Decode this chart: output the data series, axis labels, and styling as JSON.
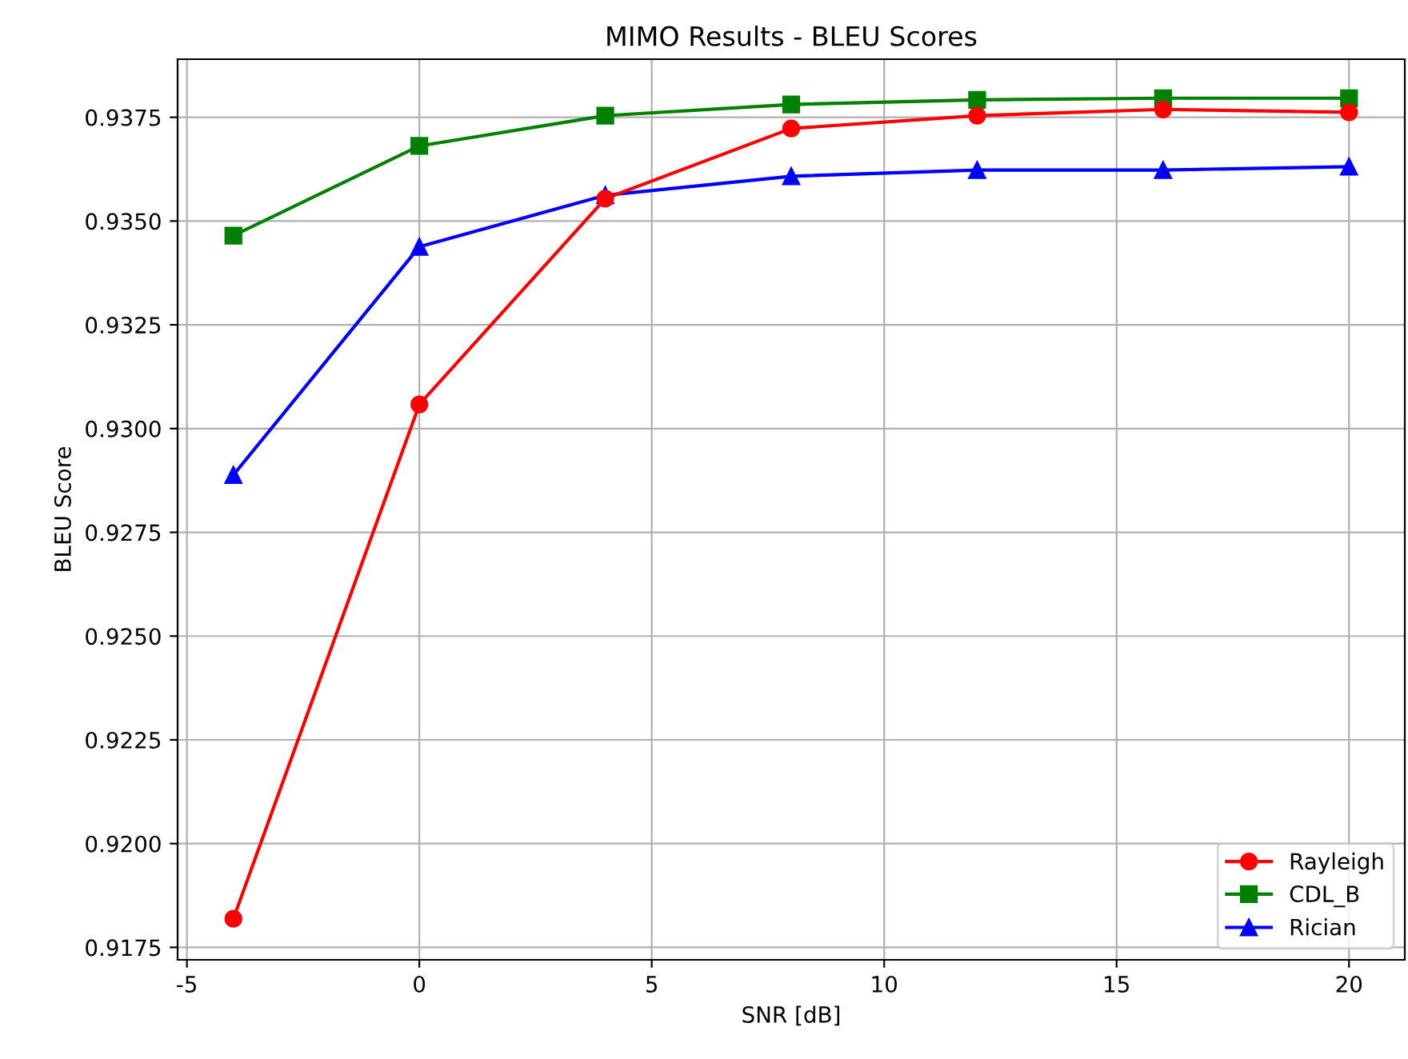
{
  "chart_data": {
    "type": "line",
    "title": "MIMO Results - BLEU Scores",
    "xlabel": "SNR [dB]",
    "ylabel": "BLEU Score",
    "x": [
      -4,
      0,
      4,
      8,
      12,
      16,
      20
    ],
    "series": [
      {
        "name": "Rayleigh",
        "color": "#ff0000",
        "marker": "circle",
        "values": [
          0.91819,
          0.93058,
          0.93554,
          0.93723,
          0.93754,
          0.93769,
          0.93762
        ]
      },
      {
        "name": "CDL_B",
        "color": "#008000",
        "marker": "square",
        "values": [
          0.93465,
          0.93681,
          0.93754,
          0.93781,
          0.93792,
          0.93796,
          0.93796
        ]
      },
      {
        "name": "Rician",
        "color": "#0000ff",
        "marker": "triangle",
        "values": [
          0.92888,
          0.93438,
          0.93562,
          0.93608,
          0.93623,
          0.93623,
          0.93631
        ]
      }
    ],
    "xlim": [
      -5.2,
      21.2
    ],
    "xticks": [
      -5,
      0,
      5,
      10,
      15,
      20
    ],
    "ylim": [
      0.9172,
      0.9389
    ],
    "yticks": [
      {
        "value": 0.9175,
        "label": "0.9175"
      },
      {
        "value": 0.92,
        "label": "0.9200"
      },
      {
        "value": 0.9225,
        "label": "0.9225"
      },
      {
        "value": 0.925,
        "label": "0.9250"
      },
      {
        "value": 0.9275,
        "label": "0.9275"
      },
      {
        "value": 0.93,
        "label": "0.9300"
      },
      {
        "value": 0.9325,
        "label": "0.9325"
      },
      {
        "value": 0.935,
        "label": "0.9350"
      },
      {
        "value": 0.9375,
        "label": "0.9375"
      }
    ],
    "grid": true,
    "legend": "lower right",
    "line_style": "solid"
  }
}
